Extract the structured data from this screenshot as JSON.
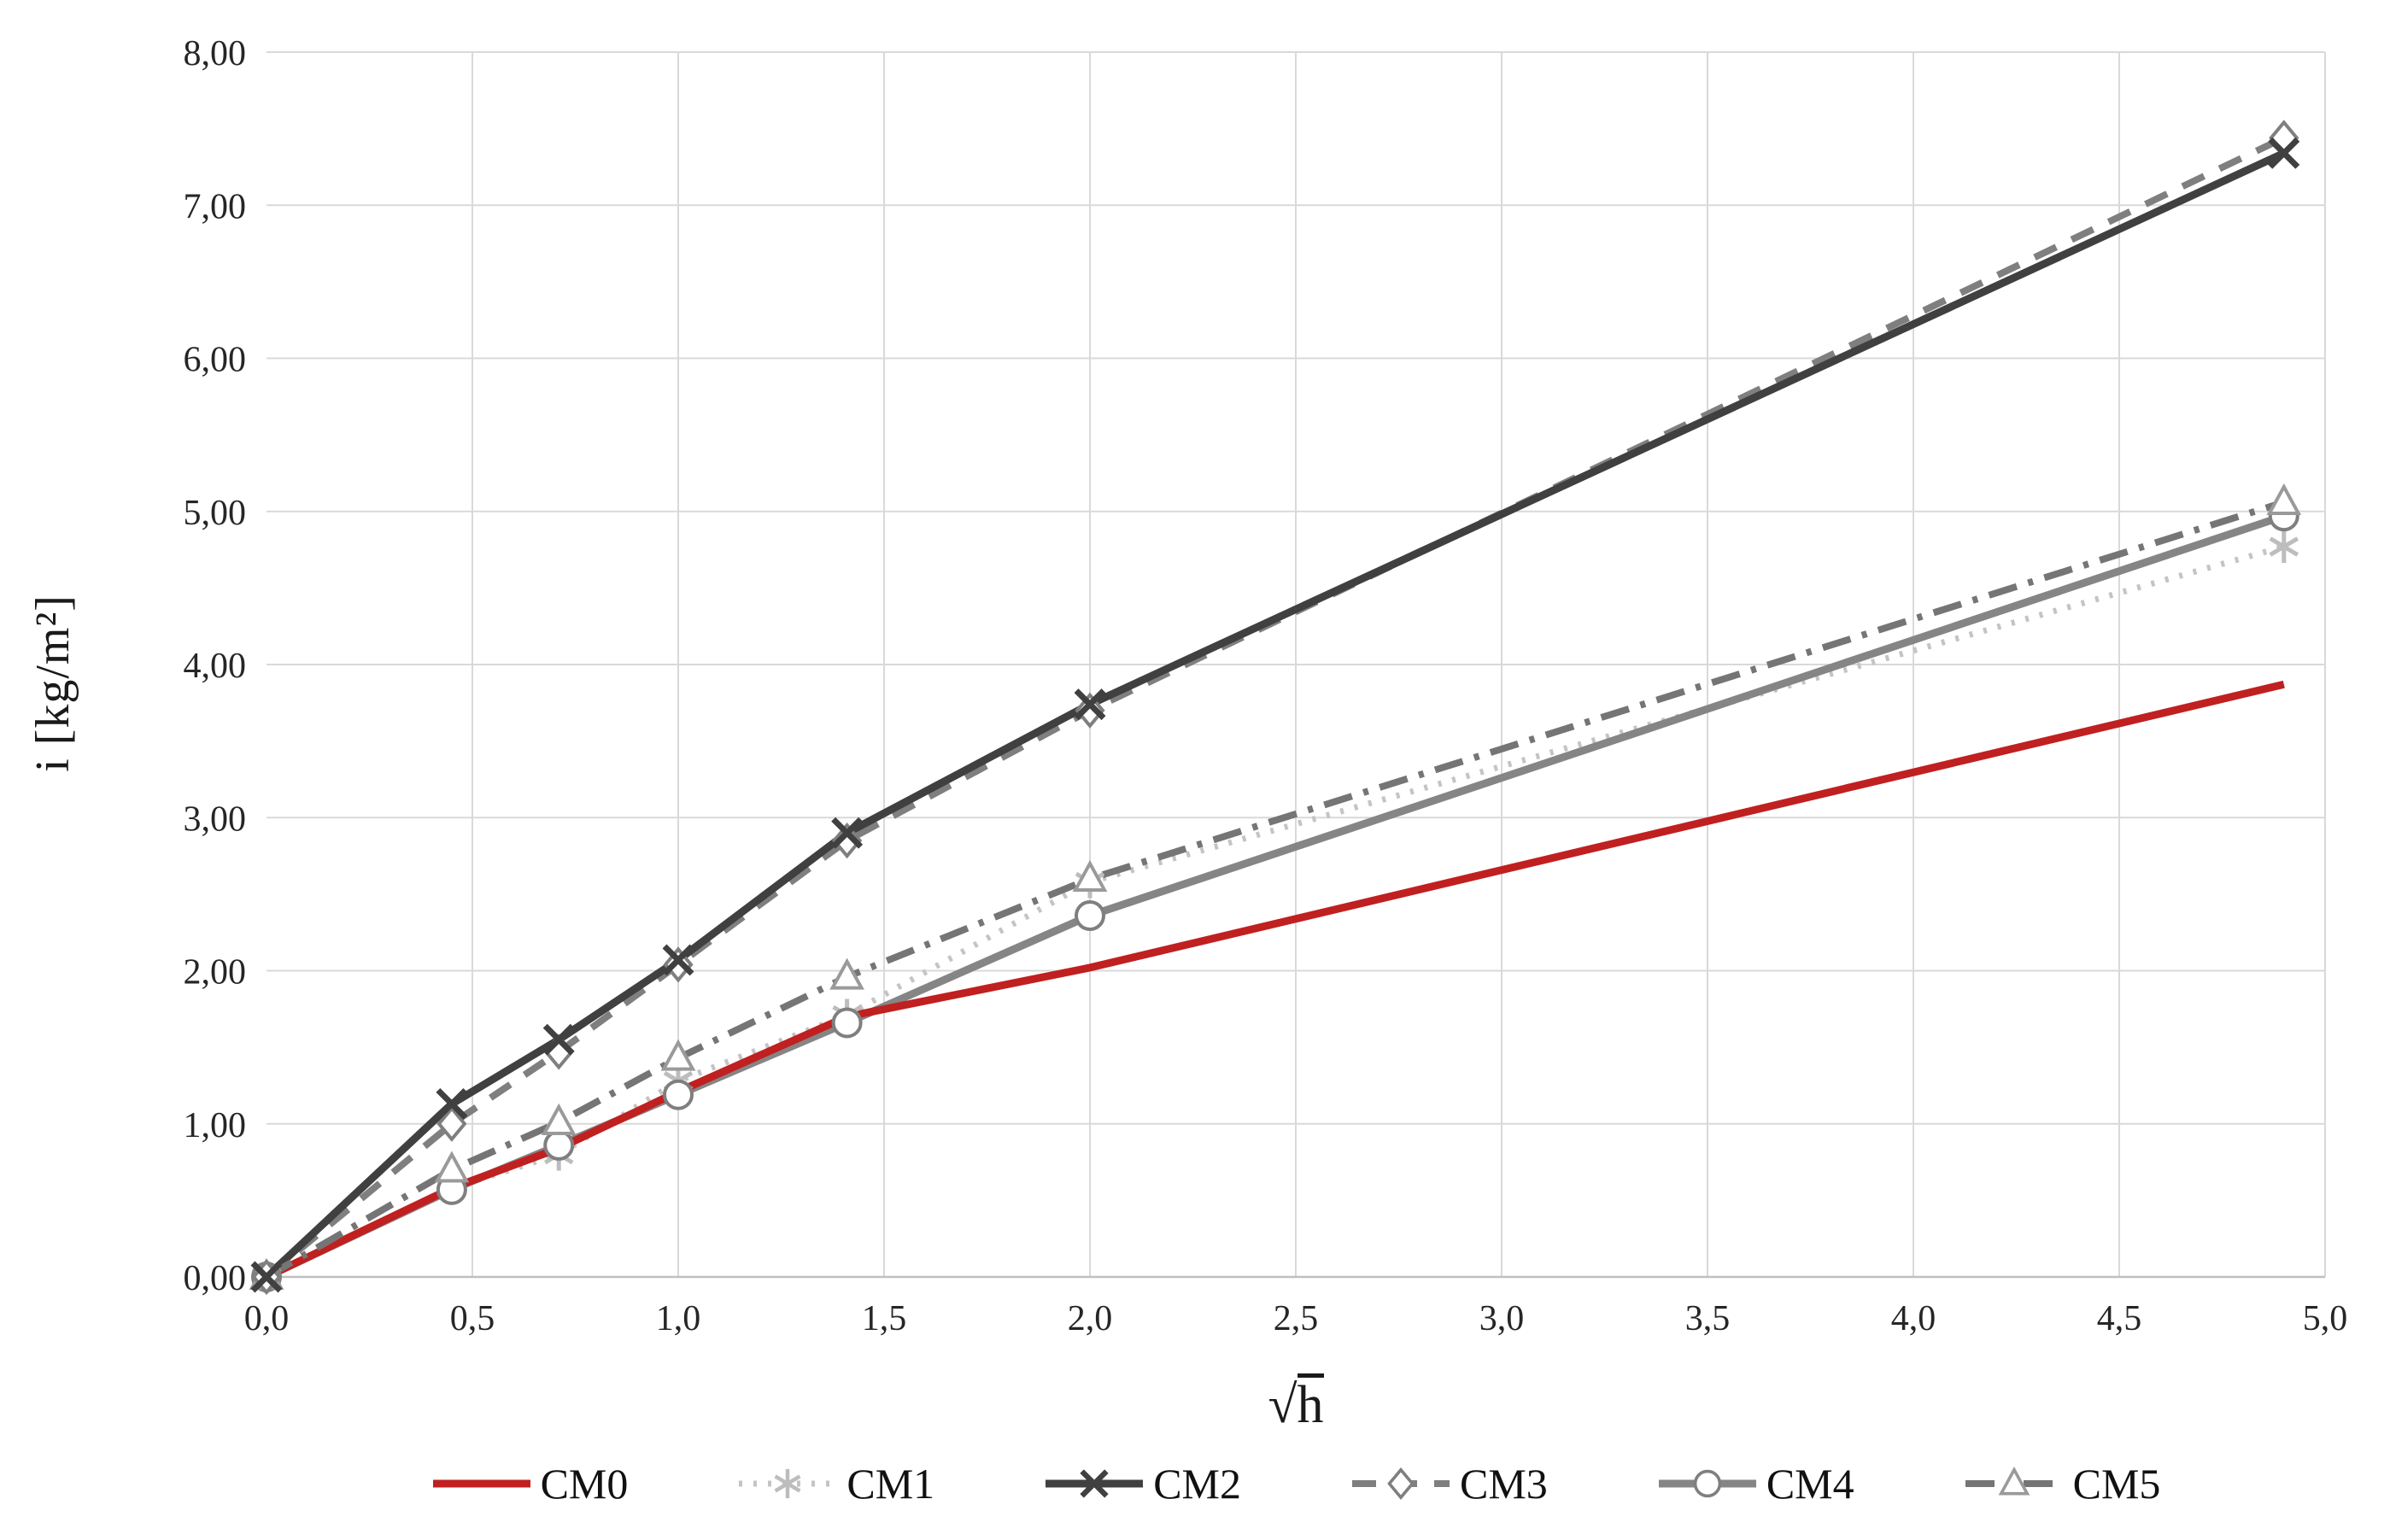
{
  "chart_data": {
    "type": "line",
    "title": "",
    "xlabel": "√h",
    "xlabel_radical": "√",
    "xlabel_arg": "h",
    "ylabel": "i [kg/m²]",
    "xlim": [
      0,
      5
    ],
    "ylim": [
      0,
      8
    ],
    "grid": true,
    "legend_position": "bottom",
    "x_ticks": {
      "values": [
        0,
        0.5,
        1.0,
        1.5,
        2.0,
        2.5,
        3.0,
        3.5,
        4.0,
        4.5,
        5.0
      ],
      "labels": [
        "0,0",
        "0,5",
        "1,0",
        "1,5",
        "2,0",
        "2,5",
        "3,0",
        "3,5",
        "4,0",
        "4,5",
        "5,0"
      ]
    },
    "y_ticks": {
      "values": [
        0,
        1,
        2,
        3,
        4,
        5,
        6,
        7,
        8
      ],
      "labels": [
        "0,00",
        "1,00",
        "2,00",
        "3,00",
        "4,00",
        "5,00",
        "6,00",
        "7,00",
        "8,00"
      ]
    },
    "x": [
      0,
      0.45,
      0.71,
      1.0,
      1.41,
      2.0,
      4.9
    ],
    "series": [
      {
        "name": "CM0",
        "color": "#C02020",
        "dash": "solid",
        "marker": "none",
        "values": [
          0,
          0.58,
          0.84,
          1.21,
          1.7,
          2.02,
          3.87
        ]
      },
      {
        "name": "CM1",
        "color": "#C4C4C4",
        "dash": "dotted",
        "marker": "asterisk",
        "marker_color": "#BDBDBD",
        "values": [
          0,
          0.58,
          0.8,
          1.28,
          1.71,
          2.58,
          4.77
        ]
      },
      {
        "name": "CM2",
        "color": "#404040",
        "dash": "solid",
        "marker": "x",
        "marker_color": "#404040",
        "values": [
          0,
          1.13,
          1.55,
          2.07,
          2.9,
          3.74,
          7.34
        ]
      },
      {
        "name": "CM3",
        "color": "#7F7F7F",
        "dash": "dashed",
        "marker": "diamond",
        "marker_color": "#7F7F7F",
        "values": [
          0,
          1.0,
          1.47,
          2.04,
          2.85,
          3.7,
          7.44
        ]
      },
      {
        "name": "CM4",
        "color": "#858585",
        "dash": "solid",
        "marker": "circle",
        "marker_color": "#7F7F7F",
        "values": [
          0,
          0.57,
          0.86,
          1.19,
          1.66,
          2.36,
          4.97
        ]
      },
      {
        "name": "CM5",
        "color": "#757575",
        "dash": "dashdot",
        "marker": "triangle",
        "marker_color": "#9A9A9A",
        "values": [
          0,
          0.7,
          1.01,
          1.43,
          1.96,
          2.6,
          5.06
        ]
      }
    ],
    "colors": {
      "gridline": "#D9D9D9",
      "axis_line": "#BFBFBF",
      "tick_text": "#262626"
    }
  }
}
